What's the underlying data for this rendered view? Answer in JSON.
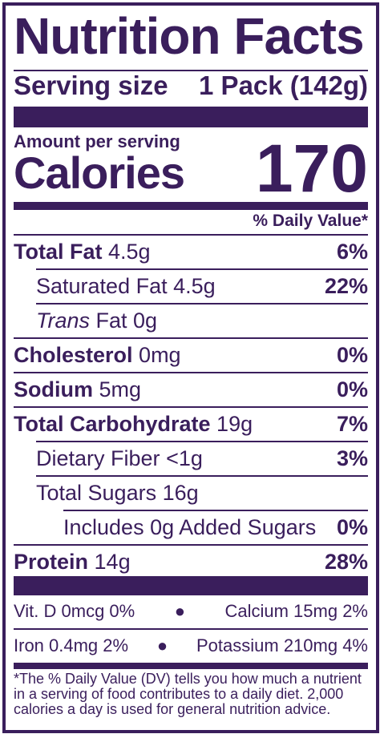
{
  "label": {
    "title": "Nutrition Facts",
    "serving_size_label": "Serving size",
    "serving_size_value": "1 Pack (142g)",
    "amount_per_serving": "Amount per serving",
    "calories_label": "Calories",
    "calories_value": "170",
    "daily_value_header": "% Daily Value*",
    "nutrients": [
      {
        "name": "Total Fat",
        "amount": "4.5g",
        "dv": "6%"
      },
      {
        "name": "Saturated Fat",
        "amount": "4.5g",
        "dv": "22%"
      },
      {
        "name": "Trans",
        "name_rest": "Fat 0g",
        "dv": ""
      },
      {
        "name": "Cholesterol",
        "amount": "0mg",
        "dv": "0%"
      },
      {
        "name": "Sodium",
        "amount": "5mg",
        "dv": "0%"
      },
      {
        "name": "Total Carbohydrate",
        "amount": "19g",
        "dv": "7%"
      },
      {
        "name": "Dietary Fiber",
        "amount": "<1g",
        "dv": "3%"
      },
      {
        "name": "Total Sugars",
        "amount": "16g",
        "dv": ""
      },
      {
        "name": "Includes 0g Added Sugars",
        "dv": "0%"
      },
      {
        "name": "Protein",
        "amount": "14g",
        "dv": "28%"
      }
    ],
    "vitamins": [
      {
        "left": "Vit. D 0mcg 0%",
        "right": "Calcium 15mg 2%"
      },
      {
        "left": "Iron 0.4mg 2%",
        "right": "Potassium 210mg  4%"
      }
    ],
    "footnote": "*The % Daily Value (DV) tells you how much a nutrient in a serving of food contributes to a daily diet. 2,000 calories a day is used for general nutrition advice.",
    "colors": {
      "ink": "#3a1e5c",
      "background": "#ffffff"
    }
  }
}
